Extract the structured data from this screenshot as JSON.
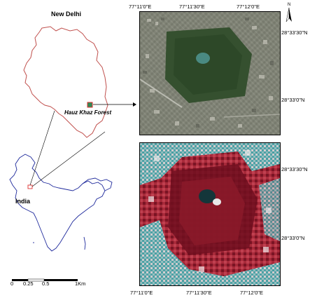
{
  "titles": {
    "region": "New Delhi",
    "country": "India",
    "site": "Hauz Khaz Forest"
  },
  "top_lon_labels": [
    "77°11'0\"E",
    "77°11'30\"E",
    "77°12'0\"E"
  ],
  "right_lat_labels": [
    "28°33'30\"N",
    "28°33'0\"N",
    "28°33'30\"N",
    "28°33'0\"N"
  ],
  "bottom_lon_labels": [
    "77°11'0\"E",
    "77°11'30\"E",
    "77°12'0\"E"
  ],
  "north_arrow": {
    "letter": "N"
  },
  "scale_bar": {
    "ticks": [
      "0",
      "0.25",
      "0.5",
      "1"
    ],
    "unit": "Km"
  },
  "colors": {
    "delhi_outline": "#c0504d",
    "india_outline": "#1f2a9c",
    "site_marker": "#e03030",
    "site_fill": "#2e8b57"
  },
  "panels": {
    "top": "true-color satellite image",
    "bottom": "false-color composite image"
  }
}
